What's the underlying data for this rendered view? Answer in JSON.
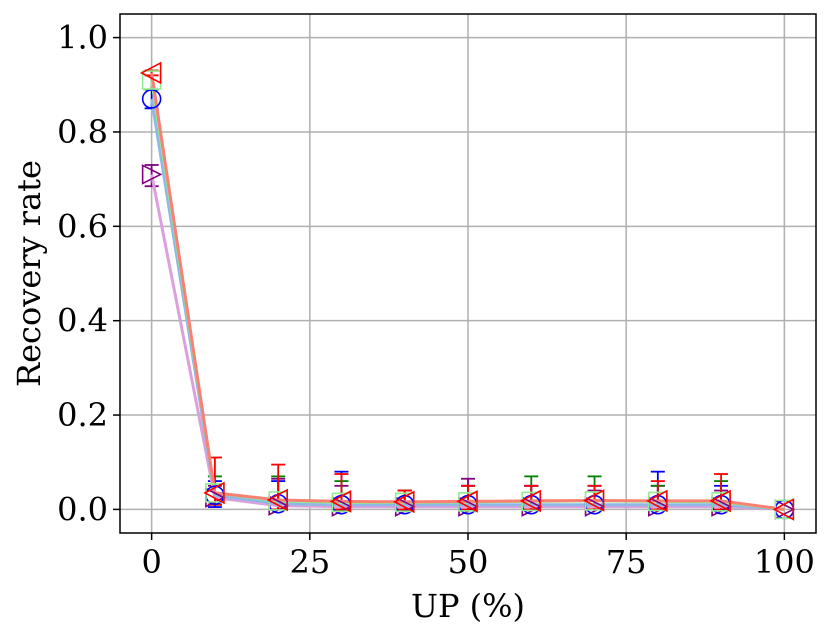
{
  "chart_data": {
    "type": "line",
    "xlabel": "UP (%)",
    "ylabel": "Recovery rate",
    "xlim": [
      -5,
      105
    ],
    "ylim": [
      -0.05,
      1.05
    ],
    "xticks": [
      0,
      25,
      50,
      75,
      100
    ],
    "yticks": [
      0.0,
      0.2,
      0.4,
      0.6,
      0.8,
      1.0
    ],
    "xtick_labels": [
      "0",
      "25",
      "50",
      "75",
      "100"
    ],
    "ytick_labels": [
      "0.0",
      "0.2",
      "0.4",
      "0.6",
      "0.8",
      "1.0"
    ],
    "grid": true,
    "x": [
      0,
      10,
      20,
      30,
      40,
      50,
      60,
      70,
      80,
      90,
      100
    ],
    "series": [
      {
        "marker": "triangle-right",
        "line_color": "#dda0dd",
        "marker_color": "#800080",
        "values": [
          0.71,
          0.025,
          0.008,
          0.006,
          0.006,
          0.006,
          0.006,
          0.006,
          0.006,
          0.006,
          0.0
        ],
        "err_upper": [
          0.73,
          0.05,
          0.065,
          0.05,
          0.04,
          0.065,
          0.05,
          0.04,
          0.05,
          0.04,
          0.0
        ],
        "err_lower": [
          0.685,
          0.01,
          0.0,
          0.0,
          0.0,
          0.0,
          0.0,
          0.0,
          0.0,
          0.0,
          0.0
        ]
      },
      {
        "marker": "circle",
        "line_color": "#8fb8e6",
        "marker_color": "#0000ff",
        "values": [
          0.87,
          0.03,
          0.012,
          0.01,
          0.01,
          0.01,
          0.01,
          0.01,
          0.01,
          0.01,
          0.0
        ],
        "err_upper": [
          0.89,
          0.06,
          0.06,
          0.08,
          0.04,
          0.05,
          0.05,
          0.05,
          0.08,
          0.05,
          0.0
        ],
        "err_lower": [
          0.85,
          0.005,
          0.0,
          0.0,
          0.0,
          0.0,
          0.0,
          0.0,
          0.0,
          0.0,
          0.0
        ]
      },
      {
        "marker": "square",
        "line_color": "#90ee90",
        "marker_color": "#90ee90",
        "values": [
          0.91,
          0.035,
          0.018,
          0.015,
          0.015,
          0.016,
          0.017,
          0.018,
          0.017,
          0.016,
          0.0
        ],
        "err_upper": [
          0.93,
          0.07,
          0.07,
          0.06,
          0.04,
          0.05,
          0.07,
          0.07,
          0.05,
          0.06,
          0.0
        ],
        "err_lower": [
          0.89,
          0.01,
          0.0,
          0.0,
          0.0,
          0.0,
          0.0,
          0.0,
          0.0,
          0.0,
          0.0
        ]
      },
      {
        "marker": "triangle-left",
        "line_color": "#fa8072",
        "marker_color": "#ff0000",
        "values": [
          0.925,
          0.035,
          0.02,
          0.017,
          0.016,
          0.017,
          0.018,
          0.019,
          0.018,
          0.018,
          0.0
        ],
        "err_upper": [
          0.93,
          0.11,
          0.095,
          0.075,
          0.04,
          0.05,
          0.05,
          0.05,
          0.06,
          0.075,
          0.0
        ],
        "err_lower": [
          0.92,
          0.01,
          0.0,
          0.0,
          0.0,
          0.0,
          0.0,
          0.0,
          0.0,
          0.0,
          0.0
        ]
      }
    ],
    "errorbar_colors": [
      "#800080",
      "#0000ff",
      "#008000",
      "#ff0000"
    ]
  }
}
